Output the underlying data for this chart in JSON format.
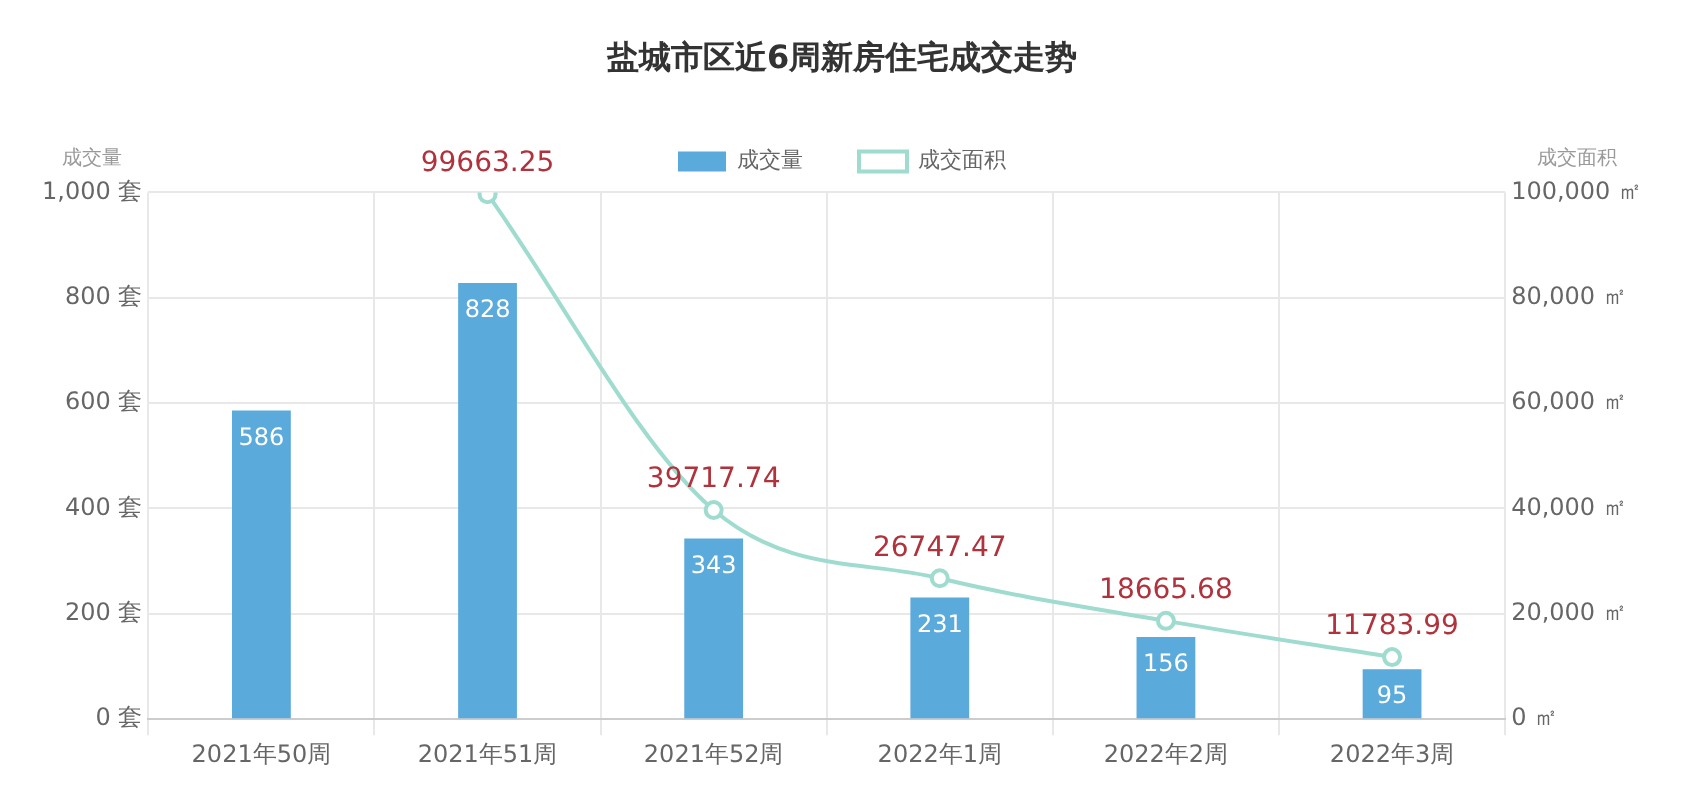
{
  "chart_data": {
    "type": "bar",
    "title": "盐城市区近6周新房住宅成交走势",
    "ylabel": "成交量",
    "y2label": "成交面积",
    "categories": [
      "2021年50周",
      "2021年51周",
      "2021年52周",
      "2022年1周",
      "2022年2周",
      "2022年3周"
    ],
    "series": [
      {
        "name": "成交量",
        "color": "#5aaadc",
        "values": [
          586,
          828,
          343,
          231,
          156,
          95
        ]
      },
      {
        "name": "成交面积",
        "type": "line",
        "axis": "y2",
        "color": "#9fdccf",
        "marker": "circle",
        "values": [
          null,
          99663.25,
          39717.74,
          26747.47,
          18665.68,
          11783.99
        ]
      }
    ],
    "ylim": [
      0,
      1000
    ],
    "yticks": [
      {
        "value": 0,
        "label": "0 套"
      },
      {
        "value": 200,
        "label": "200 套"
      },
      {
        "value": 400,
        "label": "400 套"
      },
      {
        "value": 600,
        "label": "600 套"
      },
      {
        "value": 800,
        "label": "800 套"
      },
      {
        "value": 1000,
        "label": "1,000 套"
      }
    ],
    "y2lim": [
      0,
      100000
    ],
    "y2ticks": [
      {
        "value": 0,
        "label": "0 ㎡"
      },
      {
        "value": 20000,
        "label": "20,000 ㎡"
      },
      {
        "value": 40000,
        "label": "40,000 ㎡"
      },
      {
        "value": 60000,
        "label": "60,000 ㎡"
      },
      {
        "value": 80000,
        "label": "80,000 ㎡"
      },
      {
        "value": 100000,
        "label": "100,000 ㎡"
      }
    ],
    "grid": true,
    "legend": "top",
    "data_labels": true
  }
}
